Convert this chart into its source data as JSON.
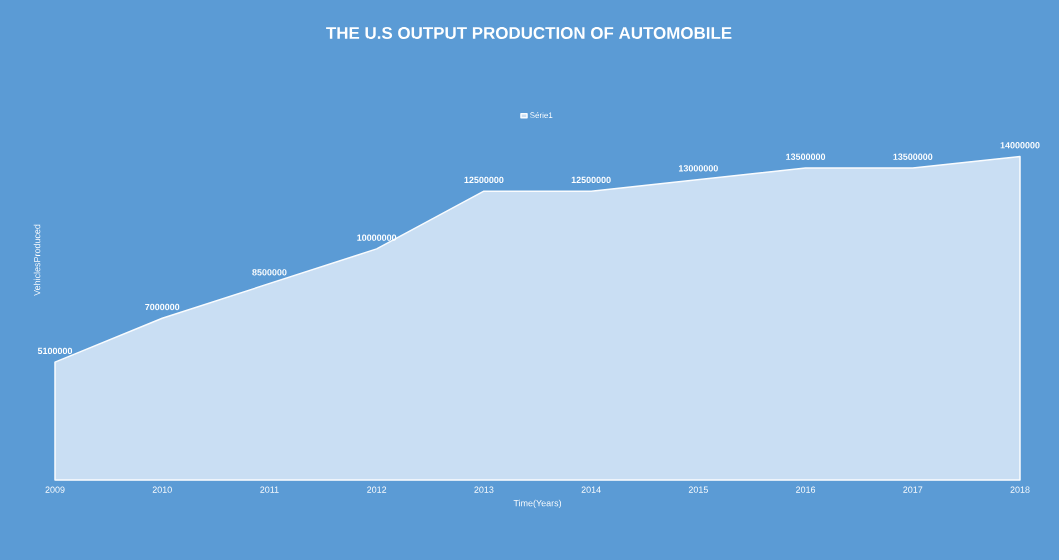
{
  "chart_data": {
    "type": "area",
    "title": "THE U.S OUTPUT PRODUCTION OF AUTOMOBILE",
    "xlabel": "Time(Years)",
    "ylabel": "VehiclesProduced",
    "categories": [
      "2009",
      "2010",
      "2011",
      "2012",
      "2013",
      "2014",
      "2015",
      "2016",
      "2017",
      "2018"
    ],
    "series": [
      {
        "name": "Série1",
        "color": "#c9def3",
        "values": [
          5100000,
          7000000,
          8500000,
          10000000,
          12500000,
          12500000,
          13000000,
          13500000,
          13500000,
          14000000
        ]
      }
    ],
    "data_labels": true,
    "legend": "top",
    "grid": false
  }
}
